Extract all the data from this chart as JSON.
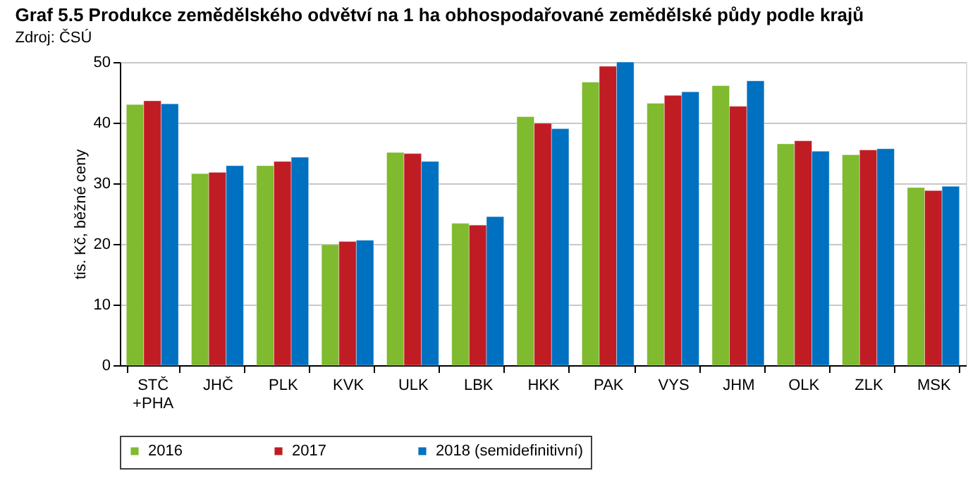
{
  "chart_data": {
    "type": "bar",
    "title": "Graf 5.5   Produkce zemědělského odvětví na 1 ha obhospodařované zemědělské půdy podle krajů",
    "subtitle": "Zdroj: ČSÚ",
    "ylabel": "tis. Kč, běžné ceny",
    "categories": [
      "STČ\n+PHA",
      "JHČ",
      "PLK",
      "KVK",
      "ULK",
      "LBK",
      "HKK",
      "PAK",
      "VYS",
      "JHM",
      "OLK",
      "ZLK",
      "MSK"
    ],
    "series": [
      {
        "name": "2016",
        "color": "#7fba2f",
        "values": [
          43.0,
          31.6,
          32.9,
          19.9,
          35.1,
          23.4,
          41.0,
          46.7,
          43.2,
          46.1,
          36.5,
          34.7,
          29.3
        ]
      },
      {
        "name": "2017",
        "color": "#c01c24",
        "values": [
          43.6,
          31.8,
          33.6,
          20.4,
          34.9,
          23.1,
          39.9,
          49.3,
          44.5,
          42.7,
          37.0,
          35.5,
          28.8
        ]
      },
      {
        "name": "2018 (semidefinitivní)",
        "color": "#0070c0",
        "values": [
          43.1,
          32.9,
          34.3,
          20.6,
          33.6,
          24.5,
          39.0,
          50.0,
          45.1,
          46.9,
          35.3,
          35.7,
          29.5
        ]
      }
    ],
    "ylim": [
      0,
      50
    ],
    "yticks": [
      0,
      10,
      20,
      30,
      40,
      50
    ],
    "grid": "y",
    "legend": "bottom"
  }
}
